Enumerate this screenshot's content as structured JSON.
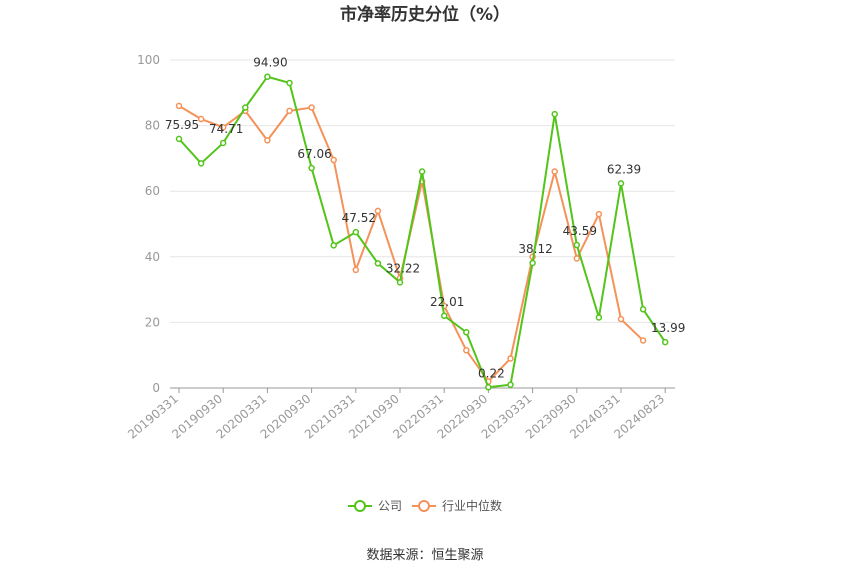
{
  "chart_data": {
    "type": "line",
    "title": "市净率历史分位（%）",
    "ylim": [
      0,
      100
    ],
    "yticks": [
      0,
      20,
      40,
      60,
      80,
      100
    ],
    "x_tick_labels": [
      "20190331",
      "20190930",
      "20200331",
      "20200930",
      "20210331",
      "20210930",
      "20220331",
      "20220930",
      "20230331",
      "20230930",
      "20240331",
      "20240823"
    ],
    "x": [
      "20190331",
      "20190630",
      "20190930",
      "20191231",
      "20200331",
      "20200630",
      "20200930",
      "20201231",
      "20210331",
      "20210630",
      "20210930",
      "20211231",
      "20220331",
      "20220630",
      "20220930",
      "20221231",
      "20230331",
      "20230630",
      "20230930",
      "20231231",
      "20240331",
      "20240630",
      "20240823"
    ],
    "grid": true,
    "legend_position": "bottom",
    "series": [
      {
        "name": "公司",
        "color": "#52c41a",
        "values": [
          75.95,
          68.5,
          74.71,
          85.5,
          94.9,
          93.0,
          67.06,
          43.5,
          47.52,
          38.0,
          32.22,
          66.0,
          22.01,
          17.0,
          0.22,
          1.0,
          38.12,
          83.5,
          43.59,
          21.5,
          62.39,
          24.0,
          13.99
        ],
        "labels": [
          "75.95",
          "",
          "74.71",
          "",
          "94.90",
          "",
          "67.06",
          "",
          "47.52",
          "",
          "32.22",
          "",
          "22.01",
          "",
          "0.22",
          "",
          "38.12",
          "",
          "43.59",
          "",
          "62.39",
          "",
          "13.99"
        ]
      },
      {
        "name": "行业中位数",
        "color": "#f4925a",
        "values": [
          86.0,
          82.0,
          79.5,
          84.5,
          75.5,
          84.5,
          85.5,
          69.5,
          36.0,
          54.0,
          33.5,
          63.0,
          25.0,
          11.5,
          2.0,
          9.0,
          40.0,
          66.0,
          39.5,
          53.0,
          21.0,
          14.5,
          null
        ]
      }
    ]
  },
  "footer": {
    "source": "数据来源：恒生聚源"
  }
}
